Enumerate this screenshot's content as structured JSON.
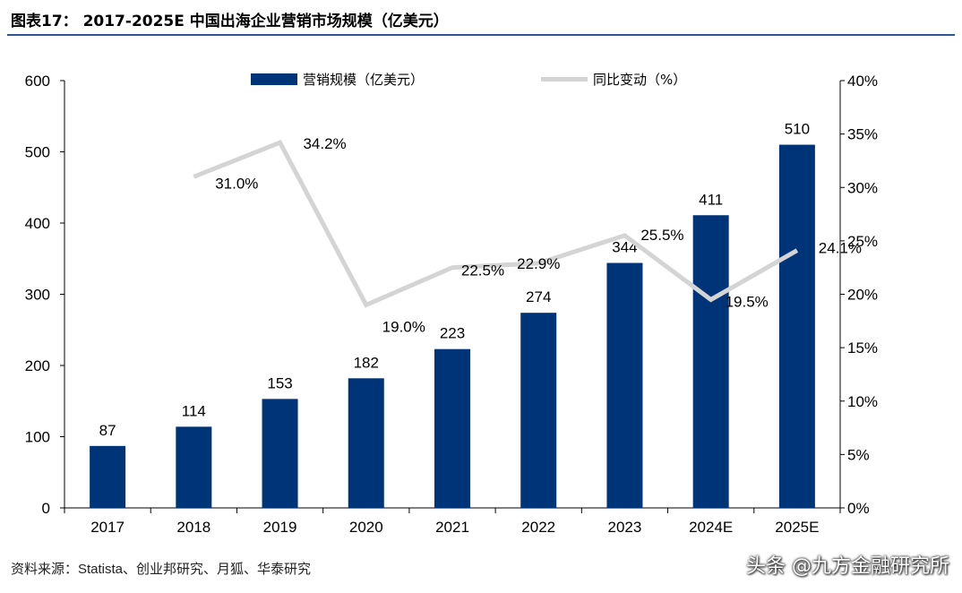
{
  "header": {
    "title": "图表17： 2017-2025E 中国出海企业营销市场规模（亿美元）"
  },
  "footer": {
    "source": "资料来源：Statista、创业邦研究、月狐、华泰研究",
    "watermark": "头条 @九方金融研究所"
  },
  "colors": {
    "bar": "#003478",
    "line": "#d4d4d4",
    "rule": "#2f5597"
  },
  "chart_data": {
    "type": "bar",
    "categories": [
      "2017",
      "2018",
      "2019",
      "2020",
      "2021",
      "2022",
      "2023",
      "2024E",
      "2025E"
    ],
    "series": [
      {
        "name": "营销规模（亿美元）",
        "type": "bar",
        "axis": "left",
        "values": [
          87,
          114,
          153,
          182,
          223,
          274,
          344,
          411,
          510
        ],
        "labels": [
          "87",
          "114",
          "153",
          "182",
          "223",
          "274",
          "344",
          "411",
          "510"
        ]
      },
      {
        "name": "同比变动（%）",
        "type": "line",
        "axis": "right",
        "values": [
          null,
          31.0,
          34.2,
          19.0,
          22.5,
          22.9,
          25.5,
          19.5,
          24.1
        ],
        "labels": [
          "",
          "31.0%",
          "34.2%",
          "19.0%",
          "22.5%",
          "22.9%",
          "25.5%",
          "19.5%",
          "24.1%"
        ]
      }
    ],
    "y_left": {
      "min": 0,
      "max": 600,
      "ticks": [
        "0",
        "100",
        "200",
        "300",
        "400",
        "500",
        "600"
      ]
    },
    "y_right": {
      "min": 0,
      "max": 40,
      "ticks": [
        "0%",
        "5%",
        "10%",
        "15%",
        "20%",
        "25%",
        "30%",
        "35%",
        "40%"
      ]
    },
    "legend_position": "top-center",
    "grid": false
  }
}
